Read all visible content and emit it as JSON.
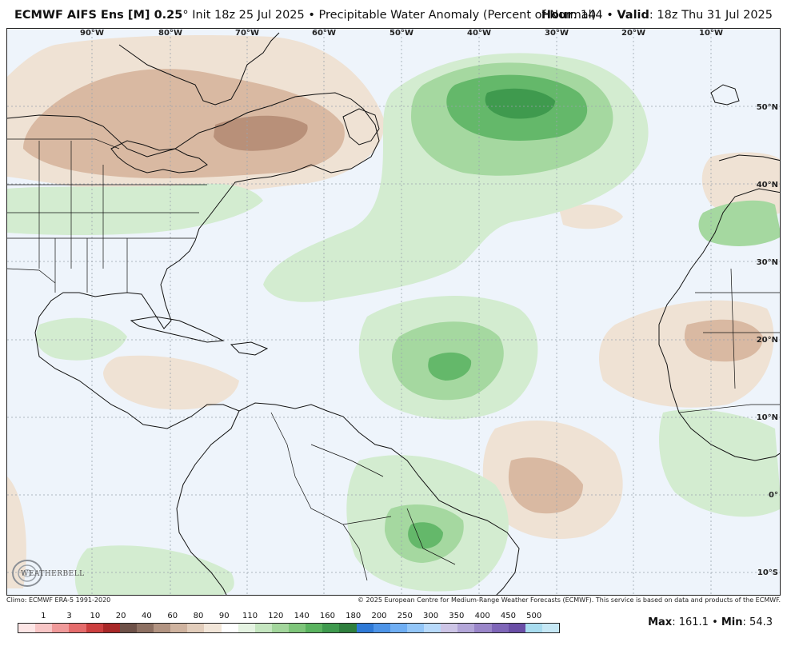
{
  "header": {
    "model": "ECMWF AIFS Ens [M] 0.25",
    "degree": "°",
    "init": " Init 18z 25 Jul 2025",
    "bullet": " • ",
    "product": "Precipitable Water Anomaly (Percent of Normal)",
    "hour_label": "Hour",
    "hour_value": ": 144",
    "valid_label": "Valid",
    "valid_value": ": 18z Thu 31 Jul 2025"
  },
  "map": {
    "lon_labels": [
      "90°W",
      "80°W",
      "70°W",
      "60°W",
      "50°W",
      "40°W",
      "30°W",
      "20°W",
      "10°W"
    ],
    "lat_labels": [
      "50°N",
      "40°N",
      "30°N",
      "20°N",
      "10°N",
      "0°",
      "10°S"
    ],
    "colors": {
      "ocean": "#eef4fb",
      "dry_light": "#efe2d4",
      "dry_mid": "#d9b9a2",
      "dry_dark": "#b89079",
      "wet_light": "#d3ecd0",
      "wet_mid": "#a5d8a0",
      "wet_dark": "#64b86a",
      "wet_darkest": "#3f9a4e"
    },
    "logo_text": "WEATHERBELL"
  },
  "footer": {
    "climo": "Climo: ECMWF ERA-5 1991-2020",
    "copyright": "© 2025 European Centre for Medium-Range Weather Forecasts (ECMWF). This service is based on data and products of the ECMWF."
  },
  "legend": {
    "labels": [
      "1",
      "3",
      "10",
      "20",
      "40",
      "60",
      "80",
      "90",
      "110",
      "120",
      "140",
      "160",
      "180",
      "200",
      "250",
      "300",
      "350",
      "400",
      "450",
      "500"
    ],
    "colors": [
      "#fde6e6",
      "#f8c6c6",
      "#f09a9a",
      "#e56c6c",
      "#cc3f3f",
      "#a82828",
      "#6e5148",
      "#8d7062",
      "#b29482",
      "#cfb39f",
      "#e2cdbb",
      "#f2e6d9",
      "#ffffff",
      "#e5f3e2",
      "#c5e6c0",
      "#a3d69c",
      "#7ec57a",
      "#5ab35f",
      "#3f9a4e",
      "#2f7f3e",
      "#2e79d6",
      "#4d94e8",
      "#6faef3",
      "#93c6f8",
      "#b8dafb",
      "#cdc5e6",
      "#b3a6d8",
      "#9a86c9",
      "#7f66b8",
      "#6a4ea6",
      "#a8dcef",
      "#c6e8f5"
    ]
  },
  "stats": {
    "max_label": "Max",
    "max_value": ": 161.1",
    "min_label": "Min",
    "min_value": ": 54.3"
  }
}
